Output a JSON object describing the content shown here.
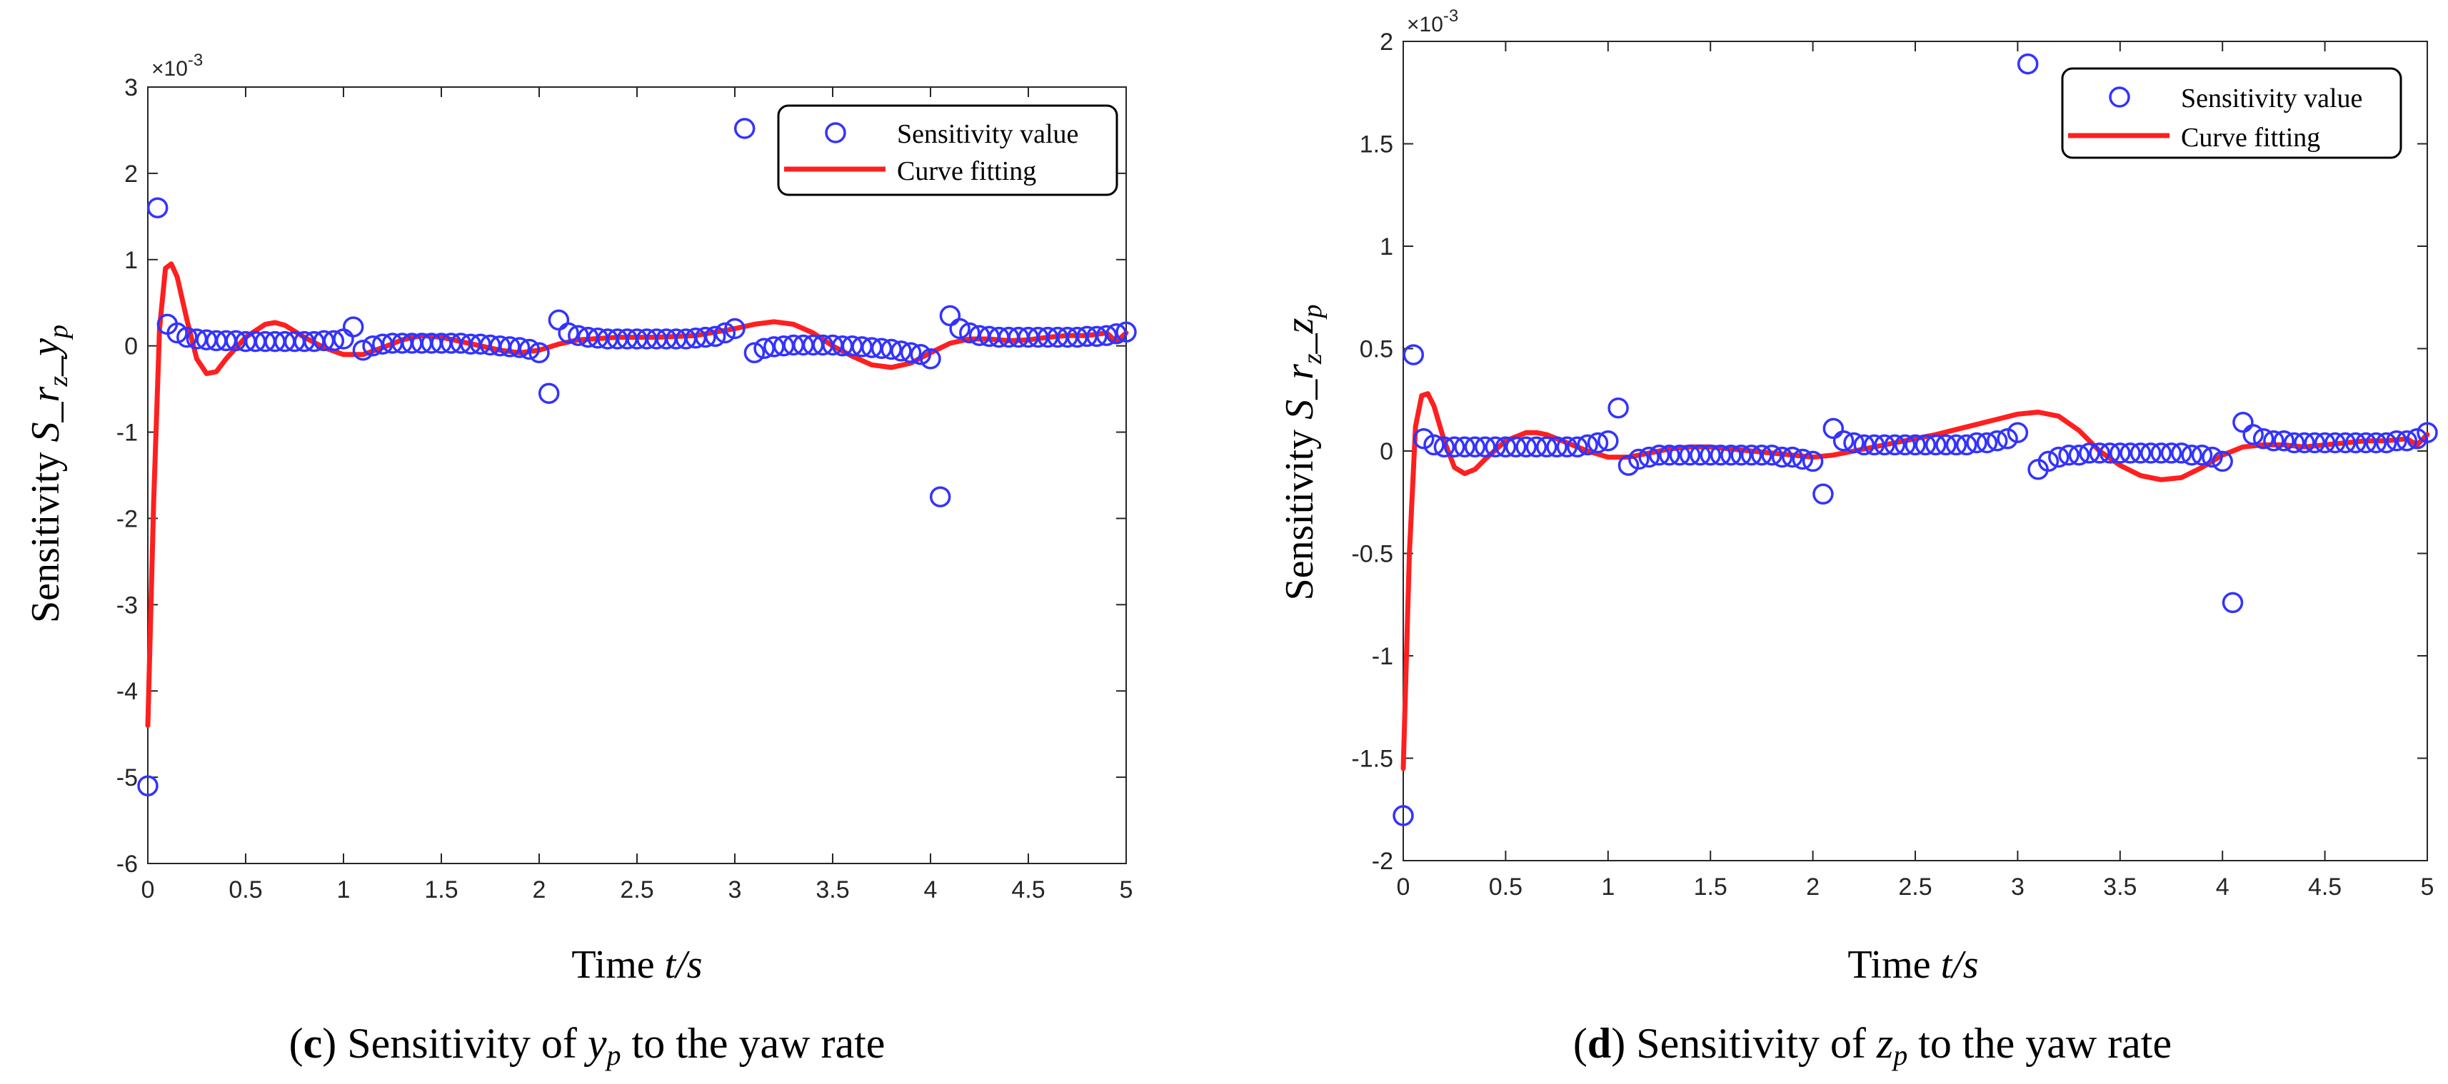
{
  "chart_data": [
    {
      "type": "scatter",
      "title": "",
      "caption_letter": "c",
      "caption_text": "Sensitivity of yp to the yaw rate",
      "caption_prefix": " Sensitivity of ",
      "caption_var": "y",
      "caption_sub": "p",
      "caption_suffix": " to the yaw rate",
      "xlabel_prefix": "Time ",
      "xlabel_var": "t/s",
      "ylabel_prefix": "Sensitivity ",
      "ylabel_var": "S_r",
      "ylabel_sub1": "z",
      "ylabel_mid": "_y",
      "ylabel_sub2": "p",
      "exponent_label": "×10^-3",
      "xlim": [
        0,
        5
      ],
      "ylim": [
        -6,
        3
      ],
      "xticks": [
        "0",
        "0.5",
        "1",
        "1.5",
        "2",
        "2.5",
        "3",
        "3.5",
        "4",
        "4.5",
        "5"
      ],
      "yticks": [
        "-6",
        "-5",
        "-4",
        "-3",
        "-2",
        "-1",
        "0",
        "1",
        "2",
        "3"
      ],
      "legend": {
        "position": "top-right",
        "entries": [
          "Sensitivity value",
          "Curve fitting"
        ]
      },
      "series": [
        {
          "name": "Sensitivity value",
          "kind": "markers",
          "color": "#3333ff",
          "x": [
            0.0,
            0.05,
            0.1,
            0.15,
            0.2,
            0.25,
            0.3,
            0.35,
            0.4,
            0.45,
            0.5,
            0.55,
            0.6,
            0.65,
            0.7,
            0.75,
            0.8,
            0.85,
            0.9,
            0.95,
            1.0,
            1.05,
            1.1,
            1.15,
            1.2,
            1.25,
            1.3,
            1.35,
            1.4,
            1.45,
            1.5,
            1.55,
            1.6,
            1.65,
            1.7,
            1.75,
            1.8,
            1.85,
            1.9,
            1.95,
            2.0,
            2.05,
            2.1,
            2.15,
            2.2,
            2.25,
            2.3,
            2.35,
            2.4,
            2.45,
            2.5,
            2.55,
            2.6,
            2.65,
            2.7,
            2.75,
            2.8,
            2.85,
            2.9,
            2.95,
            3.0,
            3.05,
            3.1,
            3.15,
            3.2,
            3.25,
            3.3,
            3.35,
            3.4,
            3.45,
            3.5,
            3.55,
            3.6,
            3.65,
            3.7,
            3.75,
            3.8,
            3.85,
            3.9,
            3.95,
            4.0,
            4.05,
            4.1,
            4.15,
            4.2,
            4.25,
            4.3,
            4.35,
            4.4,
            4.45,
            4.5,
            4.55,
            4.6,
            4.65,
            4.7,
            4.75,
            4.8,
            4.85,
            4.9,
            4.95,
            5.0
          ],
          "y": [
            -5.1,
            1.6,
            0.25,
            0.15,
            0.1,
            0.08,
            0.07,
            0.06,
            0.06,
            0.06,
            0.05,
            0.05,
            0.05,
            0.05,
            0.05,
            0.05,
            0.05,
            0.05,
            0.06,
            0.06,
            0.08,
            0.22,
            -0.05,
            0.0,
            0.02,
            0.03,
            0.03,
            0.03,
            0.03,
            0.03,
            0.03,
            0.03,
            0.03,
            0.02,
            0.02,
            0.01,
            0.0,
            -0.01,
            -0.02,
            -0.04,
            -0.08,
            -0.55,
            0.3,
            0.15,
            0.12,
            0.1,
            0.09,
            0.08,
            0.08,
            0.08,
            0.08,
            0.08,
            0.08,
            0.08,
            0.08,
            0.08,
            0.09,
            0.1,
            0.11,
            0.15,
            0.2,
            2.52,
            -0.08,
            -0.03,
            -0.01,
            0.0,
            0.01,
            0.01,
            0.01,
            0.01,
            0.01,
            0.0,
            0.0,
            -0.01,
            -0.02,
            -0.03,
            -0.04,
            -0.06,
            -0.08,
            -0.1,
            -0.15,
            -1.75,
            0.35,
            0.2,
            0.15,
            0.12,
            0.11,
            0.1,
            0.1,
            0.1,
            0.1,
            0.1,
            0.1,
            0.1,
            0.1,
            0.1,
            0.11,
            0.11,
            0.12,
            0.14,
            0.16
          ]
        },
        {
          "name": "Curve fitting",
          "kind": "line",
          "color": "#ff1f1f",
          "x": [
            0.0,
            0.03,
            0.06,
            0.09,
            0.12,
            0.15,
            0.2,
            0.25,
            0.3,
            0.35,
            0.4,
            0.5,
            0.6,
            0.65,
            0.7,
            0.8,
            0.9,
            1.0,
            1.1,
            1.2,
            1.3,
            1.4,
            1.5,
            1.6,
            1.7,
            1.8,
            1.9,
            2.0,
            2.1,
            2.2,
            2.4,
            2.6,
            2.8,
            3.0,
            3.1,
            3.2,
            3.3,
            3.4,
            3.5,
            3.6,
            3.7,
            3.8,
            3.9,
            4.0,
            4.1,
            4.2,
            4.3,
            4.4,
            4.5,
            4.6,
            4.7,
            4.8,
            4.9,
            4.95,
            5.0
          ],
          "y": [
            -4.4,
            -1.8,
            0.2,
            0.9,
            0.95,
            0.8,
            0.3,
            -0.15,
            -0.32,
            -0.3,
            -0.15,
            0.1,
            0.25,
            0.27,
            0.24,
            0.1,
            -0.02,
            -0.1,
            -0.1,
            -0.02,
            0.07,
            0.12,
            0.1,
            0.05,
            0.0,
            -0.05,
            -0.08,
            -0.05,
            0.02,
            0.07,
            0.1,
            0.1,
            0.12,
            0.2,
            0.25,
            0.28,
            0.25,
            0.15,
            0.0,
            -0.12,
            -0.22,
            -0.25,
            -0.2,
            -0.08,
            0.03,
            0.08,
            0.08,
            0.06,
            0.07,
            0.1,
            0.12,
            0.12,
            0.15,
            0.05,
            0.15
          ]
        }
      ]
    },
    {
      "type": "scatter",
      "title": "",
      "caption_letter": "d",
      "caption_text": "Sensitivity of zp to the yaw rate",
      "caption_prefix": " Sensitivity of ",
      "caption_var": "z",
      "caption_sub": "p",
      "caption_suffix": " to the yaw rate",
      "xlabel_prefix": "Time ",
      "xlabel_var": "t/s",
      "ylabel_prefix": "Sensitivity ",
      "ylabel_var": "S_r",
      "ylabel_sub1": "z",
      "ylabel_mid": "_z",
      "ylabel_sub2": "p",
      "exponent_label": "×10^-3",
      "xlim": [
        0,
        5
      ],
      "ylim": [
        -2,
        2
      ],
      "xticks": [
        "0",
        "0.5",
        "1",
        "1.5",
        "2",
        "2.5",
        "3",
        "3.5",
        "4",
        "4.5",
        "5"
      ],
      "yticks": [
        "-2",
        "-1.5",
        "-1",
        "-0.5",
        "0",
        "0.5",
        "1",
        "1.5",
        "2"
      ],
      "legend": {
        "position": "top-right",
        "entries": [
          "Sensitivity value",
          "Curve fitting"
        ]
      },
      "series": [
        {
          "name": "Sensitivity value",
          "kind": "markers",
          "color": "#3333ff",
          "x": [
            0.0,
            0.05,
            0.1,
            0.15,
            0.2,
            0.25,
            0.3,
            0.35,
            0.4,
            0.45,
            0.5,
            0.55,
            0.6,
            0.65,
            0.7,
            0.75,
            0.8,
            0.85,
            0.9,
            0.95,
            1.0,
            1.05,
            1.1,
            1.15,
            1.2,
            1.25,
            1.3,
            1.35,
            1.4,
            1.45,
            1.5,
            1.55,
            1.6,
            1.65,
            1.7,
            1.75,
            1.8,
            1.85,
            1.9,
            1.95,
            2.0,
            2.05,
            2.1,
            2.15,
            2.2,
            2.25,
            2.3,
            2.35,
            2.4,
            2.45,
            2.5,
            2.55,
            2.6,
            2.65,
            2.7,
            2.75,
            2.8,
            2.85,
            2.9,
            2.95,
            3.0,
            3.05,
            3.1,
            3.15,
            3.2,
            3.25,
            3.3,
            3.35,
            3.4,
            3.45,
            3.5,
            3.55,
            3.6,
            3.65,
            3.7,
            3.75,
            3.8,
            3.85,
            3.9,
            3.95,
            4.0,
            4.05,
            4.1,
            4.15,
            4.2,
            4.25,
            4.3,
            4.35,
            4.4,
            4.45,
            4.5,
            4.55,
            4.6,
            4.65,
            4.7,
            4.75,
            4.8,
            4.85,
            4.9,
            4.95,
            5.0
          ],
          "y": [
            -1.78,
            0.47,
            0.06,
            0.03,
            0.02,
            0.02,
            0.02,
            0.02,
            0.02,
            0.02,
            0.02,
            0.02,
            0.02,
            0.02,
            0.02,
            0.02,
            0.02,
            0.02,
            0.03,
            0.04,
            0.05,
            0.21,
            -0.07,
            -0.04,
            -0.03,
            -0.02,
            -0.02,
            -0.02,
            -0.02,
            -0.02,
            -0.02,
            -0.02,
            -0.02,
            -0.02,
            -0.02,
            -0.02,
            -0.02,
            -0.03,
            -0.03,
            -0.04,
            -0.05,
            -0.21,
            0.11,
            0.05,
            0.04,
            0.03,
            0.03,
            0.03,
            0.03,
            0.03,
            0.03,
            0.03,
            0.03,
            0.03,
            0.03,
            0.03,
            0.04,
            0.04,
            0.05,
            0.06,
            0.09,
            1.89,
            -0.09,
            -0.05,
            -0.03,
            -0.02,
            -0.02,
            -0.01,
            -0.01,
            -0.01,
            -0.01,
            -0.01,
            -0.01,
            -0.01,
            -0.01,
            -0.01,
            -0.01,
            -0.02,
            -0.02,
            -0.03,
            -0.05,
            -0.74,
            0.14,
            0.08,
            0.06,
            0.05,
            0.05,
            0.04,
            0.04,
            0.04,
            0.04,
            0.04,
            0.04,
            0.04,
            0.04,
            0.04,
            0.04,
            0.05,
            0.05,
            0.06,
            0.09
          ]
        },
        {
          "name": "Curve fitting",
          "kind": "line",
          "color": "#ff1f1f",
          "x": [
            0.0,
            0.03,
            0.06,
            0.09,
            0.12,
            0.15,
            0.2,
            0.25,
            0.3,
            0.35,
            0.4,
            0.5,
            0.6,
            0.65,
            0.7,
            0.8,
            0.9,
            1.0,
            1.1,
            1.2,
            1.3,
            1.4,
            1.5,
            1.6,
            1.7,
            1.8,
            1.9,
            2.0,
            2.1,
            2.2,
            2.4,
            2.6,
            2.8,
            3.0,
            3.1,
            3.2,
            3.3,
            3.4,
            3.5,
            3.6,
            3.7,
            3.8,
            3.9,
            4.0,
            4.1,
            4.2,
            4.3,
            4.4,
            4.5,
            4.6,
            4.7,
            4.8,
            4.9,
            4.95,
            5.0
          ],
          "y": [
            -1.55,
            -0.5,
            0.12,
            0.27,
            0.28,
            0.22,
            0.05,
            -0.08,
            -0.11,
            -0.09,
            -0.04,
            0.05,
            0.09,
            0.09,
            0.08,
            0.04,
            0.0,
            -0.03,
            -0.03,
            -0.01,
            0.01,
            0.02,
            0.02,
            0.01,
            0.0,
            -0.01,
            -0.02,
            -0.03,
            -0.02,
            0.0,
            0.04,
            0.08,
            0.13,
            0.18,
            0.19,
            0.17,
            0.1,
            0.0,
            -0.07,
            -0.12,
            -0.14,
            -0.13,
            -0.08,
            -0.02,
            0.02,
            0.03,
            0.03,
            0.02,
            0.03,
            0.04,
            0.05,
            0.05,
            0.06,
            0.03,
            0.08
          ]
        }
      ]
    }
  ]
}
